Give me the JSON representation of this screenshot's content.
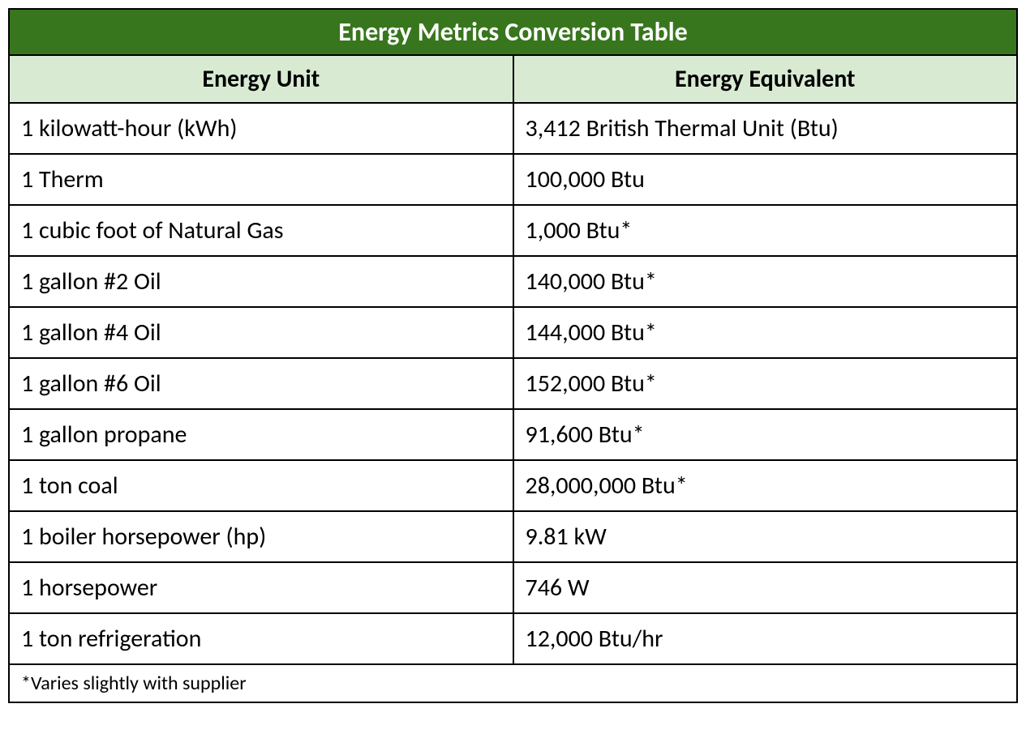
{
  "table": {
    "title": "Energy Metrics Conversion Table",
    "columns": [
      "Energy Unit",
      "Energy Equivalent"
    ],
    "rows": [
      [
        "1 kilowatt-hour (kWh)",
        "3,412 British Thermal Unit (Btu)"
      ],
      [
        "1 Therm",
        "100,000 Btu"
      ],
      [
        "1 cubic foot of Natural Gas",
        "1,000 Btu*"
      ],
      [
        "1 gallon #2 Oil",
        "140,000 Btu*"
      ],
      [
        "1 gallon #4 Oil",
        "144,000 Btu*"
      ],
      [
        "1 gallon #6 Oil",
        "152,000 Btu*"
      ],
      [
        "1 gallon propane",
        "91,600 Btu*"
      ],
      [
        "1 ton coal",
        "28,000,000 Btu*"
      ],
      [
        "1 boiler horsepower (hp)",
        "9.81 kW"
      ],
      [
        "1 horsepower",
        "746 W"
      ],
      [
        "1 ton refrigeration",
        "12,000 Btu/hr"
      ]
    ],
    "footnote": "*Varies slightly with supplier",
    "colors": {
      "title_bg": "#38761d",
      "title_text": "#ffffff",
      "header_bg": "#d9ead3",
      "header_text": "#000000",
      "row_bg": "#ffffff",
      "row_text": "#000000",
      "border": "#000000"
    },
    "fonts": {
      "title_size": 32,
      "header_size": 30,
      "data_size": 30,
      "footnote_size": 24,
      "family": "Calibri"
    }
  }
}
